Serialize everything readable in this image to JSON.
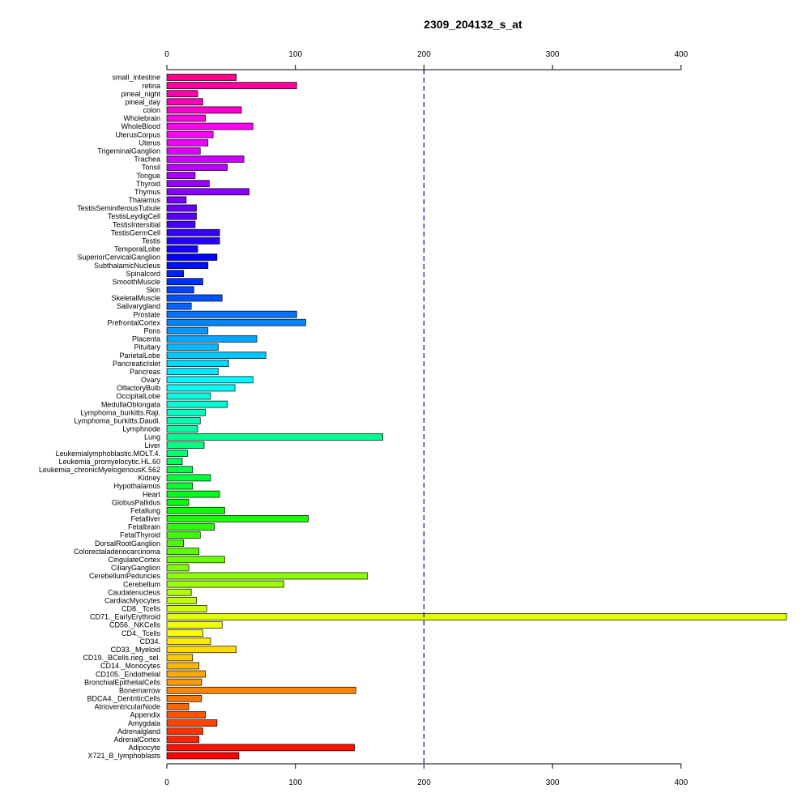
{
  "chart_data": {
    "type": "bar",
    "orientation": "horizontal",
    "title": "2309_204132_s_at",
    "xlabel": "",
    "ylabel": "",
    "xlim": [
      0,
      482
    ],
    "x_ticks": [
      0,
      100,
      200,
      300,
      400
    ],
    "x_tick_labels": [
      "0",
      "100",
      "200",
      "300",
      "400"
    ],
    "axes": [
      "top",
      "bottom"
    ],
    "reference_line": {
      "value": 200,
      "style": "dashed",
      "color": "#00008B"
    },
    "grid": false,
    "legend": "none",
    "color_scheme": "rainbow",
    "categories": [
      "small_intestine",
      "retina",
      "pineal_night",
      "pineal_day",
      "colon",
      "Wholebrain",
      "WholeBlood",
      "UterusCorpus",
      "Uterus",
      "TrigeminalGanglion",
      "Trachea",
      "Tonsil",
      "Tongue",
      "Thyroid",
      "Thymus",
      "Thalamus",
      "TestisSeminiferousTubule",
      "TestisLeydigCell",
      "TestisIntersitial",
      "TestisGermCell",
      "Testis",
      "TemporalLobe",
      "SuperiorCervicalGanglion",
      "SubthalamicNucleus",
      "Spinalcord",
      "SmoothMuscle",
      "Skin",
      "SkeletalMuscle",
      "Salivarygland",
      "Prostate",
      "PrefrontalCortex",
      "Pons",
      "Placenta",
      "Pituitary",
      "ParietalLobe",
      "PancreaticIslet",
      "Pancreas",
      "Ovary",
      "OlfactoryBulb",
      "OccipitalLobe",
      "MedullaOblongata",
      "Lymphoma_burkitts.Raji.",
      "Lymphoma_burkitts.Daudi.",
      "Lymphnode",
      "Lung",
      "Liver",
      "Leukemialymphoblastic.MOLT.4.",
      "Leukemia_promyelocytic.HL.60",
      "Leukemia_chronicMyelogenousK.562",
      "Kidney",
      "Hypothalamus",
      "Heart",
      "GlobusPallidus",
      "Fetallung",
      "Fetalliver",
      "Fetalbrain",
      "FetalThyroid",
      "DorsalRootGanglion",
      "Colorectaladenocarcinoma",
      "CingulateCortex",
      "CiliaryGanglion",
      "CerebellumPeduncles",
      "Cerebellum",
      "Caudatenucleus",
      "CardiacMyocytes",
      "CD8._Tcells",
      "CD71._EarlyErythroid",
      "CD56._NKCells",
      "CD4._Tcells",
      "CD34.",
      "CD33._Myeloid",
      "CD19._BCells.neg._sel.",
      "CD14._Monocytes",
      "CD105._Endothelial",
      "BronchialEpithelialCells",
      "Bonemarrow",
      "BDCA4._DentriticCells",
      "AtrioventricularNode",
      "Appendix",
      "Amygdala",
      "Adrenalgland",
      "AdrenalCortex",
      "Adipocyte",
      "X721_B_lymphoblasts"
    ],
    "values": [
      54,
      101,
      24,
      28,
      58,
      30,
      67,
      36,
      32,
      26,
      60,
      47,
      22,
      33,
      64,
      15,
      23,
      23,
      22,
      41,
      41,
      24,
      39,
      32,
      13,
      28,
      21,
      43,
      19,
      101,
      108,
      32,
      70,
      40,
      77,
      48,
      40,
      67,
      53,
      34,
      47,
      30,
      26,
      24,
      168,
      29,
      16,
      12,
      20,
      34,
      20,
      41,
      17,
      45,
      110,
      37,
      26,
      13,
      25,
      45,
      17,
      156,
      91,
      19,
      23,
      31,
      482,
      43,
      28,
      34,
      54,
      20,
      25,
      30,
      27,
      147,
      27,
      17,
      30,
      39,
      28,
      25,
      146,
      56
    ]
  }
}
